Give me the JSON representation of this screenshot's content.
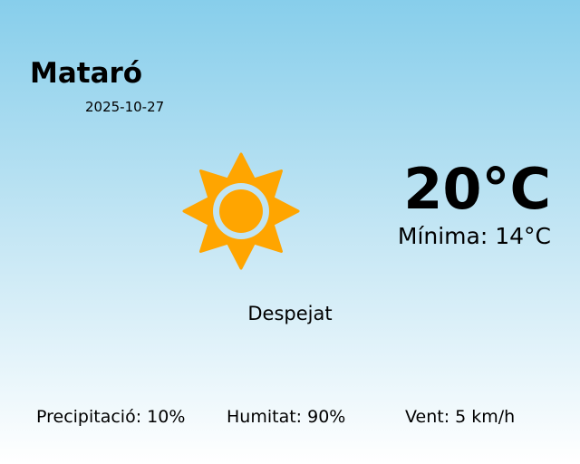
{
  "location": {
    "city": "Mataró",
    "date": "2025-10-27"
  },
  "current": {
    "temperature": "20°C",
    "minimum": "Mínima: 14°C",
    "condition": "Despejat",
    "icon": "sun-icon"
  },
  "stats": {
    "precipitation": "Precipitació: 10%",
    "humidity": "Humitat: 90%",
    "wind": "Vent: 5 km/h"
  },
  "colors": {
    "sun": "#ffa500",
    "sky_top": "#87ceeb",
    "sky_bottom": "#ffffff"
  }
}
